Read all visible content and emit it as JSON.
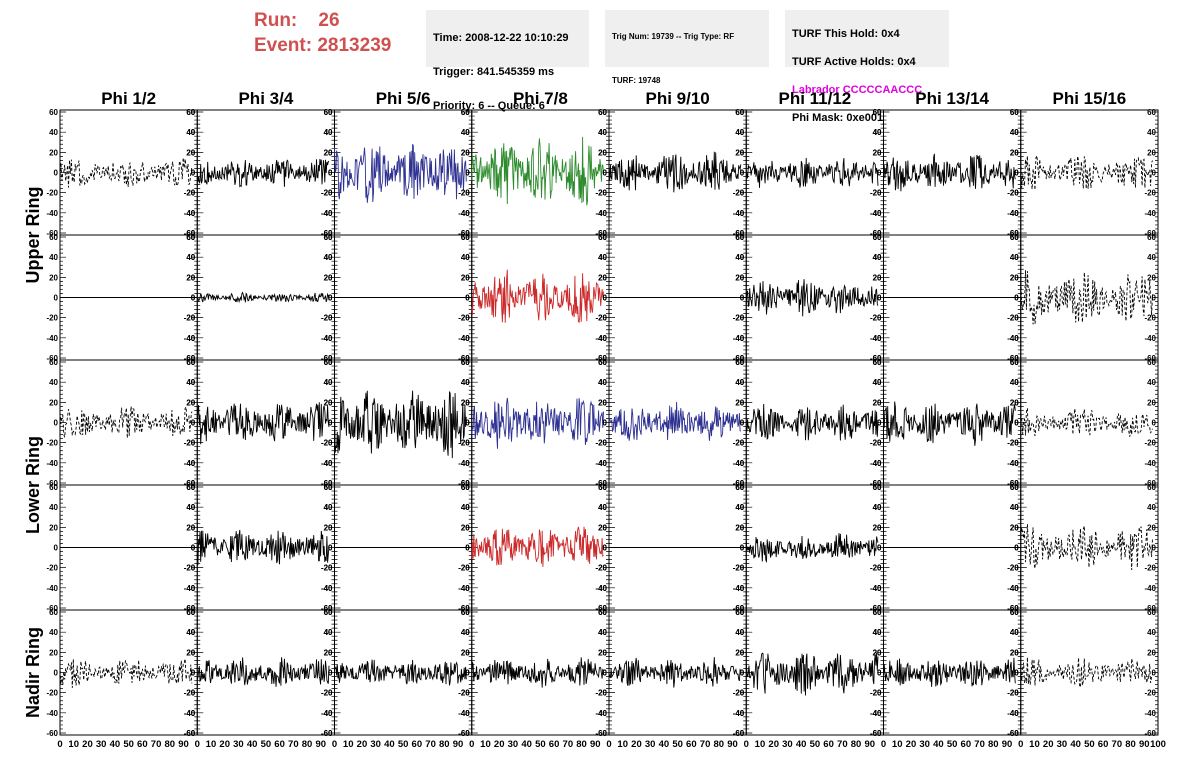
{
  "header": {
    "run_label": "Run:",
    "run_value": "26",
    "event_label": "Event:",
    "event_value": "2813239"
  },
  "info": {
    "time": "Time: 2008-12-22 10:10:29",
    "trigger": "Trigger: 841.545359 ms",
    "priority": "Priority: 6 -- Queue: 6",
    "trig_num": "Trig Num: 19739 -- Trig Type: RF",
    "turf": "TURF: 19748",
    "turf_this_hold": "TURF This Hold: 0x4",
    "turf_active_holds": "TURF Active Holds: 0x4",
    "labrador": "Labrador CCCCCAACCC",
    "phi_mask": "Phi Mask: 0xe001"
  },
  "colors": {
    "run_text": "#d05050",
    "labrador_text": "#e000e0",
    "blue": "#2e3192",
    "green": "#2e8b2e",
    "red": "#cc2a2a",
    "black": "#000000"
  },
  "chart_data": {
    "type": "line",
    "columns": [
      "Phi 1/2",
      "Phi 3/4",
      "Phi 5/6",
      "Phi 7/8",
      "Phi 9/10",
      "Phi 11/12",
      "Phi 13/14",
      "Phi 15/16"
    ],
    "rows": [
      {
        "label": "Upper Ring",
        "subrows": 2
      },
      {
        "label": "Lower Ring",
        "subrows": 2
      },
      {
        "label": "Nadir Ring",
        "subrows": 1
      }
    ],
    "ylim": [
      -62,
      62
    ],
    "yticks": [
      -60,
      -40,
      -20,
      0,
      20,
      40,
      60
    ],
    "xlim": [
      0,
      100
    ],
    "xticks": [
      0,
      10,
      20,
      30,
      40,
      50,
      60,
      70,
      80,
      90,
      100
    ],
    "panels": [
      [
        {
          "style": "dashed",
          "color": "black",
          "amp": 13
        },
        {
          "style": "solid",
          "color": "black",
          "amp": 12
        },
        {
          "style": "solid",
          "color": "blue",
          "amp": 25
        },
        {
          "style": "solid",
          "color": "green",
          "amp": 28
        },
        {
          "style": "solid",
          "color": "black",
          "amp": 17
        },
        {
          "style": "solid",
          "color": "black",
          "amp": 13
        },
        {
          "style": "solid",
          "color": "black",
          "amp": 16
        },
        {
          "style": "dashed",
          "color": "black",
          "amp": 15
        }
      ],
      [
        {
          "style": "flat",
          "color": "black",
          "amp": 0
        },
        {
          "style": "solid",
          "color": "black",
          "amp": 4
        },
        {
          "style": "flat",
          "color": "black",
          "amp": 0
        },
        {
          "style": "solid",
          "color": "red",
          "amp": 23
        },
        {
          "style": "flat",
          "color": "black",
          "amp": 0
        },
        {
          "style": "solid",
          "color": "black",
          "amp": 15
        },
        {
          "style": "flat",
          "color": "black",
          "amp": 0
        },
        {
          "style": "dashed",
          "color": "black",
          "amp": 23
        }
      ],
      [
        {
          "style": "dashed",
          "color": "black",
          "amp": 13
        },
        {
          "style": "solid",
          "color": "black",
          "amp": 17
        },
        {
          "style": "solid",
          "color": "black",
          "amp": 28
        },
        {
          "style": "solid",
          "color": "blue",
          "amp": 22
        },
        {
          "style": "solid",
          "color": "blue",
          "amp": 17
        },
        {
          "style": "solid",
          "color": "black",
          "amp": 15
        },
        {
          "style": "solid",
          "color": "black",
          "amp": 18
        },
        {
          "style": "dashed",
          "color": "black",
          "amp": 12
        }
      ],
      [
        {
          "style": "flat",
          "color": "black",
          "amp": 0
        },
        {
          "style": "solid",
          "color": "black",
          "amp": 15
        },
        {
          "style": "flat",
          "color": "black",
          "amp": 0
        },
        {
          "style": "solid",
          "color": "red",
          "amp": 17
        },
        {
          "style": "flat",
          "color": "black",
          "amp": 0
        },
        {
          "style": "solid",
          "color": "black",
          "amp": 12
        },
        {
          "style": "flat",
          "color": "black",
          "amp": 0
        },
        {
          "style": "dashed",
          "color": "black",
          "amp": 19
        }
      ],
      [
        {
          "style": "dashed",
          "color": "black",
          "amp": 12
        },
        {
          "style": "solid",
          "color": "black",
          "amp": 12
        },
        {
          "style": "solid",
          "color": "black",
          "amp": 11
        },
        {
          "style": "solid",
          "color": "black",
          "amp": 12
        },
        {
          "style": "solid",
          "color": "black",
          "amp": 12
        },
        {
          "style": "solid",
          "color": "black",
          "amp": 18
        },
        {
          "style": "solid",
          "color": "black",
          "amp": 12
        },
        {
          "style": "dashed",
          "color": "black",
          "amp": 12
        }
      ]
    ]
  }
}
